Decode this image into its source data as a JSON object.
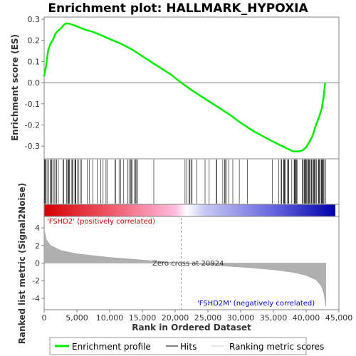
{
  "chart_data": {
    "type": "line",
    "title": "Enrichment plot: HALLMARK_HYPOXIA",
    "es_ylabel": "Enrichment score (ES)",
    "metric_ylabel": "Ranked list metric (Signal2Noise)",
    "xlabel": "Rank in Ordered Dataset",
    "x_ticks": [
      "0",
      "5,000",
      "10,000",
      "15,000",
      "20,000",
      "25,000",
      "30,000",
      "35,000",
      "40,000",
      "45,000"
    ],
    "x_tick_values": [
      0,
      5000,
      10000,
      15000,
      20000,
      25000,
      30000,
      35000,
      40000,
      45000
    ],
    "xlim": [
      0,
      45000
    ],
    "es_yticks": [
      "0.3",
      "0.2",
      "0.1",
      "0.0",
      "-0.1",
      "-0.2",
      "-0.3"
    ],
    "es_ytick_values": [
      0.3,
      0.2,
      0.1,
      0.0,
      -0.1,
      -0.2,
      -0.3
    ],
    "es_ylim": [
      -0.36,
      0.31
    ],
    "metric_yticks": [
      "4",
      "2",
      "0",
      "-2",
      "-4"
    ],
    "metric_ytick_values": [
      4,
      2,
      0,
      -2,
      -4
    ],
    "metric_ylim": [
      -5.3,
      5.3
    ],
    "dataset_size": 43000,
    "zero_cross_rank": 20924,
    "zero_cross_label": "Zero cross at 20924",
    "pos_label": "'FSHD2' (positively correlated)",
    "neg_label": "'FSHD2M' (negatively correlated)",
    "series": [
      {
        "name": "Enrichment profile",
        "color": "#00ee00",
        "x": [
          0,
          300,
          600,
          900,
          1300,
          1700,
          2100,
          2500,
          2900,
          3300,
          3800,
          4500,
          5500,
          6500,
          7500,
          9000,
          10500,
          12000,
          13500,
          15000,
          16500,
          18000,
          19500,
          20924,
          22500,
          24000,
          25500,
          27000,
          28500,
          30000,
          31000,
          32000,
          33500,
          35000,
          36000,
          37000,
          38000,
          38500,
          39000,
          39500,
          40000,
          40500,
          41000,
          41500,
          42000,
          42400,
          42700,
          42900
        ],
        "values": [
          0.03,
          0.08,
          0.15,
          0.18,
          0.2,
          0.23,
          0.245,
          0.255,
          0.27,
          0.28,
          0.279,
          0.272,
          0.26,
          0.248,
          0.24,
          0.22,
          0.2,
          0.18,
          0.155,
          0.125,
          0.095,
          0.065,
          0.035,
          0.0,
          -0.035,
          -0.065,
          -0.095,
          -0.125,
          -0.155,
          -0.19,
          -0.21,
          -0.23,
          -0.255,
          -0.28,
          -0.295,
          -0.31,
          -0.325,
          -0.325,
          -0.325,
          -0.32,
          -0.305,
          -0.28,
          -0.25,
          -0.2,
          -0.16,
          -0.12,
          -0.06,
          0.0
        ]
      }
    ],
    "hits_color": "#000000",
    "metric_fill_color": "#b0b0b0",
    "metric_curve": {
      "x": [
        0,
        300,
        1000,
        2500,
        5000,
        10000,
        15000,
        20924,
        26000,
        31000,
        35000,
        38000,
        40000,
        41500,
        42300,
        42700,
        43000
      ],
      "values": [
        3.9,
        2.7,
        2.0,
        1.45,
        1.05,
        0.65,
        0.35,
        0.0,
        -0.25,
        -0.5,
        -0.75,
        -1.05,
        -1.4,
        -1.9,
        -2.6,
        -3.4,
        -4.9
      ]
    },
    "legend": [
      "Enrichment profile",
      "Hits",
      "Ranking metric scores"
    ]
  }
}
